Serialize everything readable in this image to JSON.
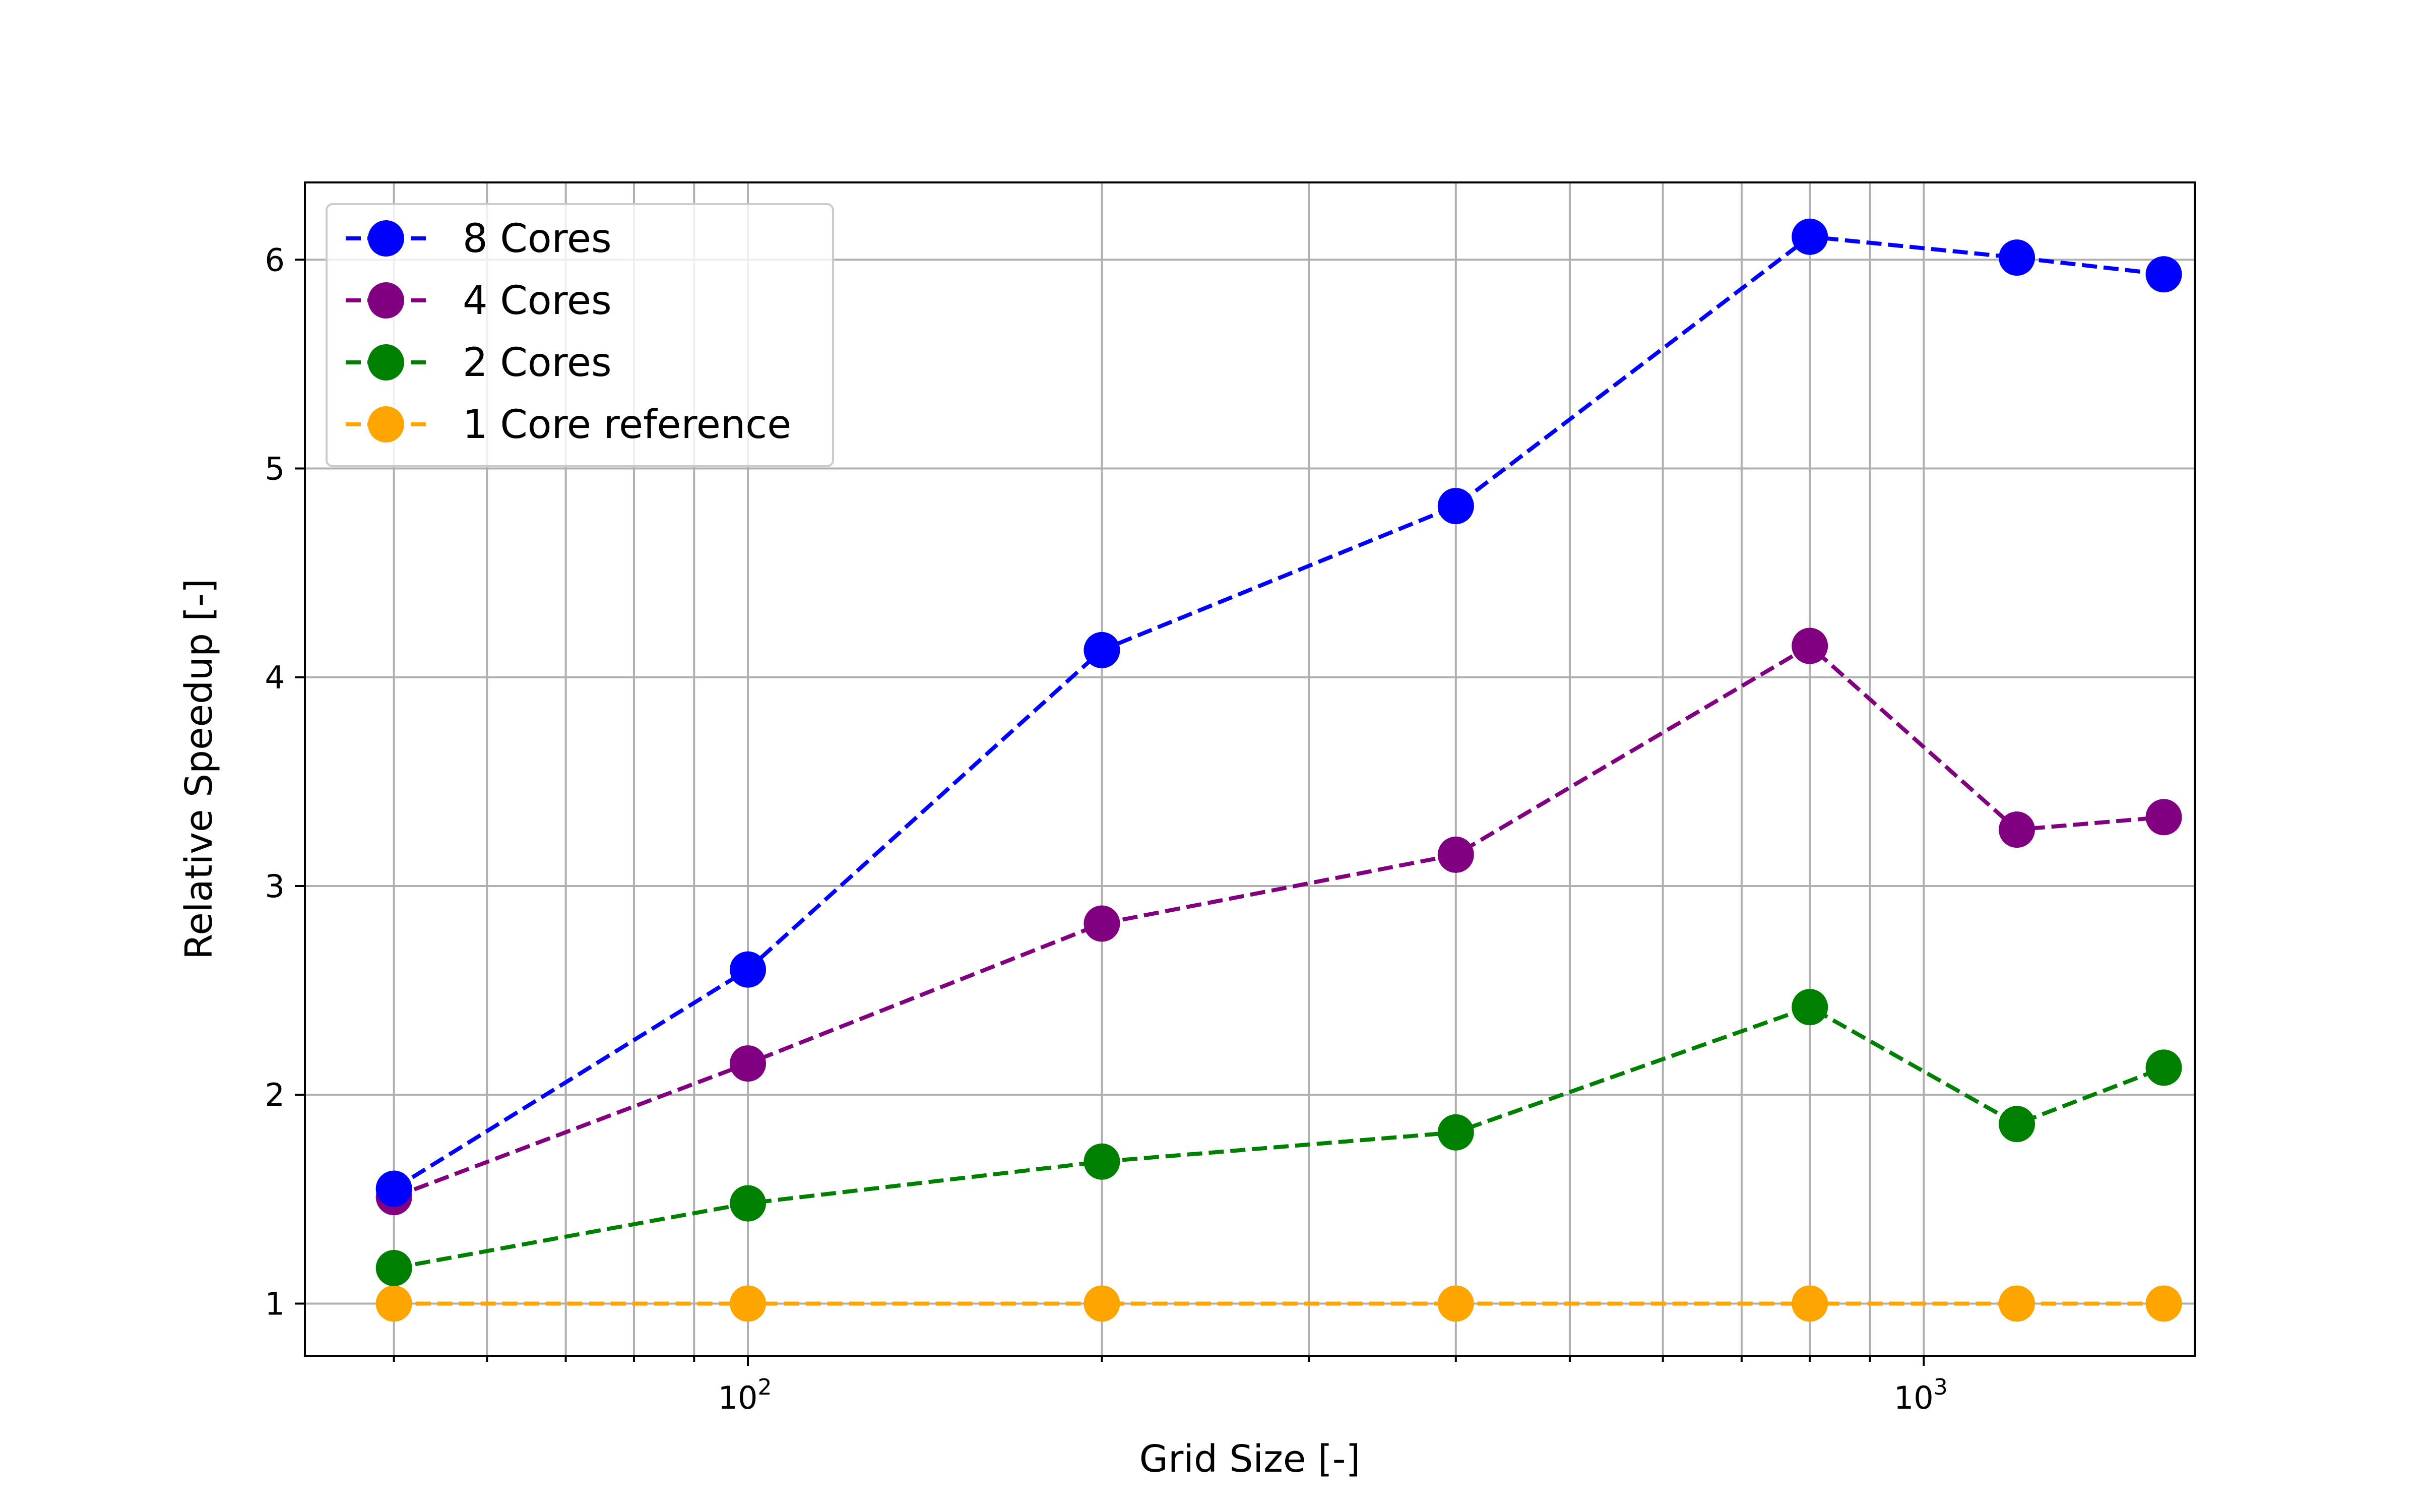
{
  "chart_data": {
    "type": "line",
    "title": "",
    "xlabel": "Grid Size [-]",
    "ylabel": "Relative Speedup [-]",
    "xscale": "log",
    "xlim": [
      42,
      1700
    ],
    "ylim": [
      0.75,
      6.37
    ],
    "grid": true,
    "grid_minor_x": true,
    "legend_position": "top-left",
    "x": [
      50,
      100,
      200,
      400,
      800,
      1200,
      1600
    ],
    "x_ticks": [
      {
        "value": 100,
        "base": "10",
        "exp": "2"
      },
      {
        "value": 1000,
        "base": "10",
        "exp": "3"
      }
    ],
    "y_ticks": [
      {
        "value": 1,
        "label": "1"
      },
      {
        "value": 2,
        "label": "2"
      },
      {
        "value": 3,
        "label": "3"
      },
      {
        "value": 4,
        "label": "4"
      },
      {
        "value": 5,
        "label": "5"
      },
      {
        "value": 6,
        "label": "6"
      }
    ],
    "series": [
      {
        "name": "8 Cores",
        "color": "#0000ff",
        "values": [
          1.55,
          2.6,
          4.13,
          4.82,
          6.11,
          6.01,
          5.93
        ]
      },
      {
        "name": "4 Cores",
        "color": "#800080",
        "values": [
          1.51,
          2.15,
          2.82,
          3.15,
          4.15,
          3.27,
          3.33
        ]
      },
      {
        "name": "2 Cores",
        "color": "#008000",
        "values": [
          1.17,
          1.48,
          1.68,
          1.82,
          2.42,
          1.86,
          2.13
        ]
      },
      {
        "name": "1 Core reference",
        "color": "#ffa500",
        "values": [
          1.0,
          1.0,
          1.0,
          1.0,
          1.0,
          1.0,
          1.0
        ]
      }
    ]
  }
}
